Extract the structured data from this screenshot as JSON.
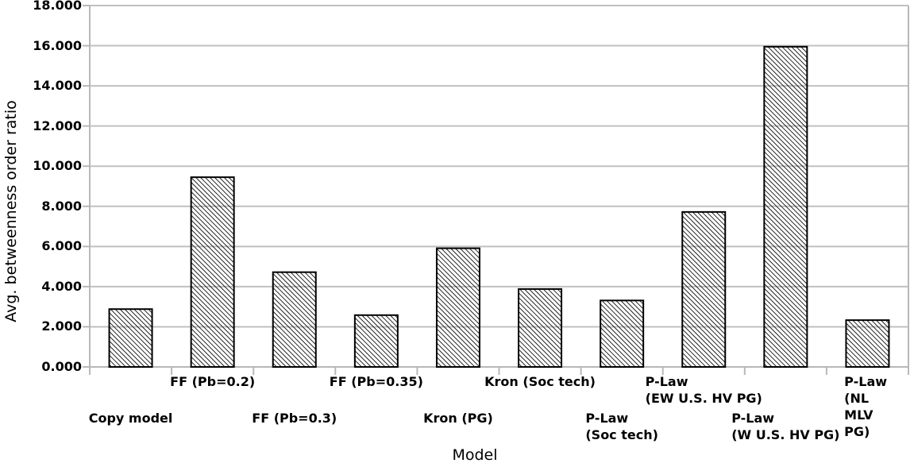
{
  "chart_data": {
    "type": "bar",
    "title": "",
    "xlabel": "Model",
    "ylabel": "Avg. betweenness order ratio",
    "ylim": [
      0,
      18
    ],
    "ytick_step": 2,
    "ytick_labels": [
      "0.000",
      "2.000",
      "4.000",
      "6.000",
      "8.000",
      "10.000",
      "12.000",
      "14.000",
      "16.000",
      "18.000"
    ],
    "grid": true,
    "legend": "none",
    "bar_style": {
      "fill": "transparent",
      "hatch": "backslash-diagonal",
      "hatch_color": "#000000",
      "border_color": "#000000",
      "border_width": 2
    },
    "colors": {
      "grid": "#c0c0c0",
      "axis": "#b8b8b8",
      "text": "#000000",
      "background": "#ffffff"
    },
    "categories": [
      "Copy model",
      "FF (Pb=0.2)",
      "FF (Pb=0.3)",
      "FF (Pb=0.35)",
      "Kron (PG)",
      "Kron (Soc tech)",
      "P-Law\n(Soc tech)",
      "P-Law\n(EW U.S. HV PG)",
      "P-Law\n(W U.S. HV PG)",
      "P-Law\n(NL MLV PG)"
    ],
    "category_label_rows": [
      2,
      1,
      2,
      1,
      2,
      1,
      2,
      1,
      2,
      1
    ],
    "values": [
      2.88,
      9.45,
      4.72,
      2.58,
      5.91,
      3.88,
      3.31,
      7.72,
      15.95,
      2.33
    ]
  }
}
